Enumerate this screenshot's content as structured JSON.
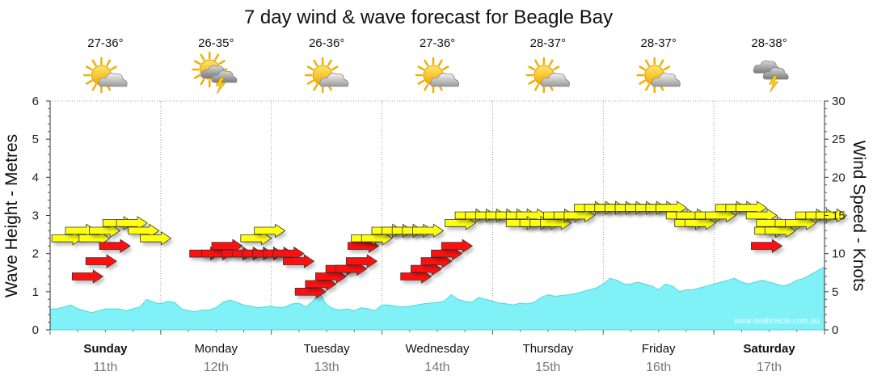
{
  "chart_data": {
    "type": "area",
    "title": "7 day wind & wave forecast for Beagle Bay",
    "ylabel_left": "Wave Height - Metres",
    "ylabel_right": "Wind Speed - Knots",
    "ylim_left": [
      0,
      6
    ],
    "ylim_right": [
      0,
      30
    ],
    "yticks_left": [
      "0",
      "1",
      "2",
      "3",
      "4",
      "5",
      "6"
    ],
    "yticks_right": [
      "0",
      "5",
      "10",
      "15",
      "20",
      "25",
      "30"
    ],
    "days": [
      {
        "name": "Sunday",
        "date": "11th",
        "temp": "27-36°",
        "icon": "partly-cloudy-sun-icon",
        "bold": true
      },
      {
        "name": "Monday",
        "date": "12th",
        "temp": "26-35°",
        "icon": "thunderstorm-sun-icon",
        "bold": false
      },
      {
        "name": "Tuesday",
        "date": "13th",
        "temp": "26-36°",
        "icon": "partly-cloudy-sun-icon",
        "bold": false
      },
      {
        "name": "Wednesday",
        "date": "14th",
        "temp": "27-36°",
        "icon": "partly-cloudy-sun-icon",
        "bold": false
      },
      {
        "name": "Thursday",
        "date": "15th",
        "temp": "28-37°",
        "icon": "partly-cloudy-sun-icon",
        "bold": false
      },
      {
        "name": "Friday",
        "date": "16th",
        "temp": "28-37°",
        "icon": "partly-cloudy-sun-icon",
        "bold": false
      },
      {
        "name": "Saturday",
        "date": "17th",
        "temp": "28-38°",
        "icon": "thunderstorm-icon",
        "bold": true
      }
    ],
    "wave_series": {
      "name": "Wave height",
      "color": "#80f2f7",
      "x_days": [
        0,
        0.25,
        0.5,
        0.75,
        1,
        1.25,
        1.5,
        1.75,
        2,
        2.25,
        2.5,
        2.75,
        3,
        3.25,
        3.5,
        3.75,
        4,
        4.25,
        4.5,
        4.75,
        5,
        5.25,
        5.5,
        5.75,
        6,
        6.25,
        6.5,
        6.75,
        7,
        7.25,
        7.5,
        7.75,
        8,
        8.25,
        8.5,
        8.75,
        9,
        9.25,
        9.5,
        9.75,
        10,
        10.25,
        10.5,
        10.75,
        11,
        11.25,
        11.5,
        11.75,
        12,
        12.25,
        12.5,
        12.75,
        13,
        13.25,
        13.5,
        13.75,
        14,
        14.25,
        14.5,
        14.75,
        15,
        15.25,
        15.5,
        15.75,
        16,
        16.25,
        16.5,
        16.75,
        17,
        17.25,
        17.5,
        17.75,
        18,
        18.25,
        18.5,
        18.75,
        19,
        19.25,
        19.5,
        19.75,
        20,
        20.25,
        20.5,
        20.75,
        21,
        21.25,
        21.5,
        21.75,
        22,
        22.25,
        22.5,
        22.75,
        23,
        23.25,
        23.5,
        23.75,
        24,
        24.25,
        24.5,
        24.75,
        25,
        25.25,
        25.5,
        25.75,
        26,
        26.25,
        26.5,
        26.75,
        27,
        27.25,
        27.5,
        27.75,
        28
      ],
      "values": [
        0.55,
        0.55,
        0.6,
        0.65,
        0.55,
        0.5,
        0.45,
        0.5,
        0.55,
        0.55,
        0.55,
        0.5,
        0.55,
        0.6,
        0.8,
        0.72,
        0.68,
        0.75,
        0.72,
        0.55,
        0.5,
        0.48,
        0.52,
        0.52,
        0.58,
        0.72,
        0.78,
        0.72,
        0.65,
        0.62,
        0.58,
        0.6,
        0.62,
        0.58,
        0.6,
        0.68,
        0.7,
        0.6,
        0.75,
        0.95,
        0.65,
        0.55,
        0.52,
        0.55,
        0.5,
        0.58,
        0.55,
        0.5,
        0.65,
        0.65,
        0.62,
        0.6,
        0.62,
        0.65,
        0.68,
        0.7,
        0.72,
        0.75,
        0.92,
        0.8,
        0.75,
        0.72,
        0.85,
        0.8,
        0.75,
        0.7,
        0.68,
        0.65,
        0.7,
        0.68,
        0.72,
        0.85,
        0.92,
        0.88,
        0.9,
        0.92,
        0.95,
        1.0,
        1.05,
        1.1,
        1.2,
        1.35,
        1.3,
        1.2,
        1.2,
        1.25,
        1.2,
        1.15,
        1.05,
        1.2,
        1.15,
        1.0,
        1.05,
        1.05,
        1.1,
        1.15,
        1.2,
        1.25,
        1.3,
        1.35,
        1.25,
        1.2,
        1.25,
        1.3,
        1.25,
        1.2,
        1.15,
        1.2,
        1.3,
        1.35,
        1.45,
        1.55,
        1.65
      ]
    },
    "wind_arrows": [
      {
        "x": 0.1,
        "knots": 12,
        "color": "yellow"
      },
      {
        "x": 0.9,
        "knots": 13,
        "color": "yellow"
      },
      {
        "x": 1.7,
        "knots": 12,
        "color": "yellow"
      },
      {
        "x": 2.3,
        "knots": 13,
        "color": "yellow"
      },
      {
        "x": 3.1,
        "knots": 14,
        "color": "yellow"
      },
      {
        "x": 3.9,
        "knots": 14,
        "color": "yellow"
      },
      {
        "x": 4.6,
        "knots": 13,
        "color": "yellow"
      },
      {
        "x": 5.3,
        "knots": 12,
        "color": "yellow"
      },
      {
        "x": 1.3,
        "knots": 7,
        "color": "red"
      },
      {
        "x": 2.1,
        "knots": 9,
        "color": "red"
      },
      {
        "x": 2.9,
        "knots": 11,
        "color": "red"
      },
      {
        "x": 8.2,
        "knots": 10,
        "color": "red"
      },
      {
        "x": 8.9,
        "knots": 10,
        "color": "red"
      },
      {
        "x": 9.5,
        "knots": 11,
        "color": "red"
      },
      {
        "x": 10.1,
        "knots": 10,
        "color": "red"
      },
      {
        "x": 10.7,
        "knots": 10,
        "color": "red"
      },
      {
        "x": 11.3,
        "knots": 10,
        "color": "red"
      },
      {
        "x": 11.9,
        "knots": 10,
        "color": "red"
      },
      {
        "x": 12.5,
        "knots": 10,
        "color": "red"
      },
      {
        "x": 13.1,
        "knots": 10,
        "color": "red"
      },
      {
        "x": 13.7,
        "knots": 9,
        "color": "red"
      },
      {
        "x": 11.2,
        "knots": 12,
        "color": "yellow"
      },
      {
        "x": 12.0,
        "knots": 13,
        "color": "yellow"
      },
      {
        "x": 14.4,
        "knots": 5,
        "color": "red"
      },
      {
        "x": 15.0,
        "knots": 6,
        "color": "red"
      },
      {
        "x": 15.6,
        "knots": 7,
        "color": "red"
      },
      {
        "x": 16.2,
        "knots": 8,
        "color": "red"
      },
      {
        "x": 16.8,
        "knots": 8,
        "color": "red"
      },
      {
        "x": 17.4,
        "knots": 9,
        "color": "red"
      },
      {
        "x": 17.5,
        "knots": 11,
        "color": "red"
      },
      {
        "x": 17.7,
        "knots": 12,
        "color": "yellow"
      },
      {
        "x": 18.3,
        "knots": 12,
        "color": "yellow"
      },
      {
        "x": 18.9,
        "knots": 13,
        "color": "yellow"
      },
      {
        "x": 19.5,
        "knots": 13,
        "color": "yellow"
      },
      {
        "x": 20.1,
        "knots": 13,
        "color": "yellow"
      },
      {
        "x": 20.7,
        "knots": 13,
        "color": "yellow"
      },
      {
        "x": 21.3,
        "knots": 13,
        "color": "yellow"
      },
      {
        "x": 20.6,
        "knots": 7,
        "color": "red"
      },
      {
        "x": 21.2,
        "knots": 8,
        "color": "red"
      },
      {
        "x": 21.8,
        "knots": 9,
        "color": "red"
      },
      {
        "x": 22.4,
        "knots": 10,
        "color": "red"
      },
      {
        "x": 23.0,
        "knots": 11,
        "color": "red"
      },
      {
        "x": 23.2,
        "knots": 14,
        "color": "yellow"
      },
      {
        "x": 23.8,
        "knots": 15,
        "color": "yellow"
      },
      {
        "x": 24.4,
        "knots": 15,
        "color": "yellow"
      },
      {
        "x": 25.0,
        "knots": 15,
        "color": "yellow"
      },
      {
        "x": 25.6,
        "knots": 15,
        "color": "yellow"
      },
      {
        "x": 26.2,
        "knots": 15,
        "color": "yellow"
      },
      {
        "x": 26.8,
        "knots": 15,
        "color": "yellow"
      },
      {
        "x": 27.4,
        "knots": 15,
        "color": "yellow"
      },
      {
        "x": 26.8,
        "knots": 14,
        "color": "yellow"
      },
      {
        "x": 27.6,
        "knots": 14,
        "color": "yellow"
      },
      {
        "x": 28.2,
        "knots": 14,
        "color": "yellow"
      },
      {
        "x": 28.8,
        "knots": 14,
        "color": "yellow"
      },
      {
        "x": 29.0,
        "knots": 15,
        "color": "yellow"
      },
      {
        "x": 29.6,
        "knots": 15,
        "color": "yellow"
      },
      {
        "x": 30.2,
        "knots": 15,
        "color": "yellow"
      },
      {
        "x": 30.8,
        "knots": 16,
        "color": "yellow"
      },
      {
        "x": 31.4,
        "knots": 16,
        "color": "yellow"
      },
      {
        "x": 32.0,
        "knots": 16,
        "color": "yellow"
      },
      {
        "x": 32.6,
        "knots": 16,
        "color": "yellow"
      },
      {
        "x": 33.2,
        "knots": 16,
        "color": "yellow"
      },
      {
        "x": 33.8,
        "knots": 16,
        "color": "yellow"
      },
      {
        "x": 34.4,
        "knots": 16,
        "color": "yellow"
      },
      {
        "x": 35.0,
        "knots": 16,
        "color": "yellow"
      },
      {
        "x": 35.6,
        "knots": 16,
        "color": "yellow"
      },
      {
        "x": 36.2,
        "knots": 15,
        "color": "yellow"
      },
      {
        "x": 36.8,
        "knots": 15,
        "color": "yellow"
      },
      {
        "x": 36.7,
        "knots": 14,
        "color": "yellow"
      },
      {
        "x": 37.3,
        "knots": 14,
        "color": "yellow"
      },
      {
        "x": 37.9,
        "knots": 15,
        "color": "yellow"
      },
      {
        "x": 38.5,
        "knots": 15,
        "color": "yellow"
      },
      {
        "x": 39.1,
        "knots": 16,
        "color": "yellow"
      },
      {
        "x": 39.7,
        "knots": 16,
        "color": "yellow"
      },
      {
        "x": 40.3,
        "knots": 16,
        "color": "yellow"
      },
      {
        "x": 40.9,
        "knots": 15,
        "color": "yellow"
      },
      {
        "x": 41.5,
        "knots": 14,
        "color": "yellow"
      },
      {
        "x": 41.2,
        "knots": 11,
        "color": "red"
      },
      {
        "x": 41.4,
        "knots": 13,
        "color": "yellow"
      },
      {
        "x": 42.0,
        "knots": 13,
        "color": "yellow"
      },
      {
        "x": 42.6,
        "knots": 14,
        "color": "yellow"
      },
      {
        "x": 43.2,
        "knots": 14,
        "color": "yellow"
      },
      {
        "x": 43.8,
        "knots": 15,
        "color": "yellow"
      },
      {
        "x": 44.4,
        "knots": 15,
        "color": "yellow"
      },
      {
        "x": 45.0,
        "knots": 15,
        "color": "yellow"
      }
    ],
    "watermark": "www.seabreeze.com.au"
  }
}
